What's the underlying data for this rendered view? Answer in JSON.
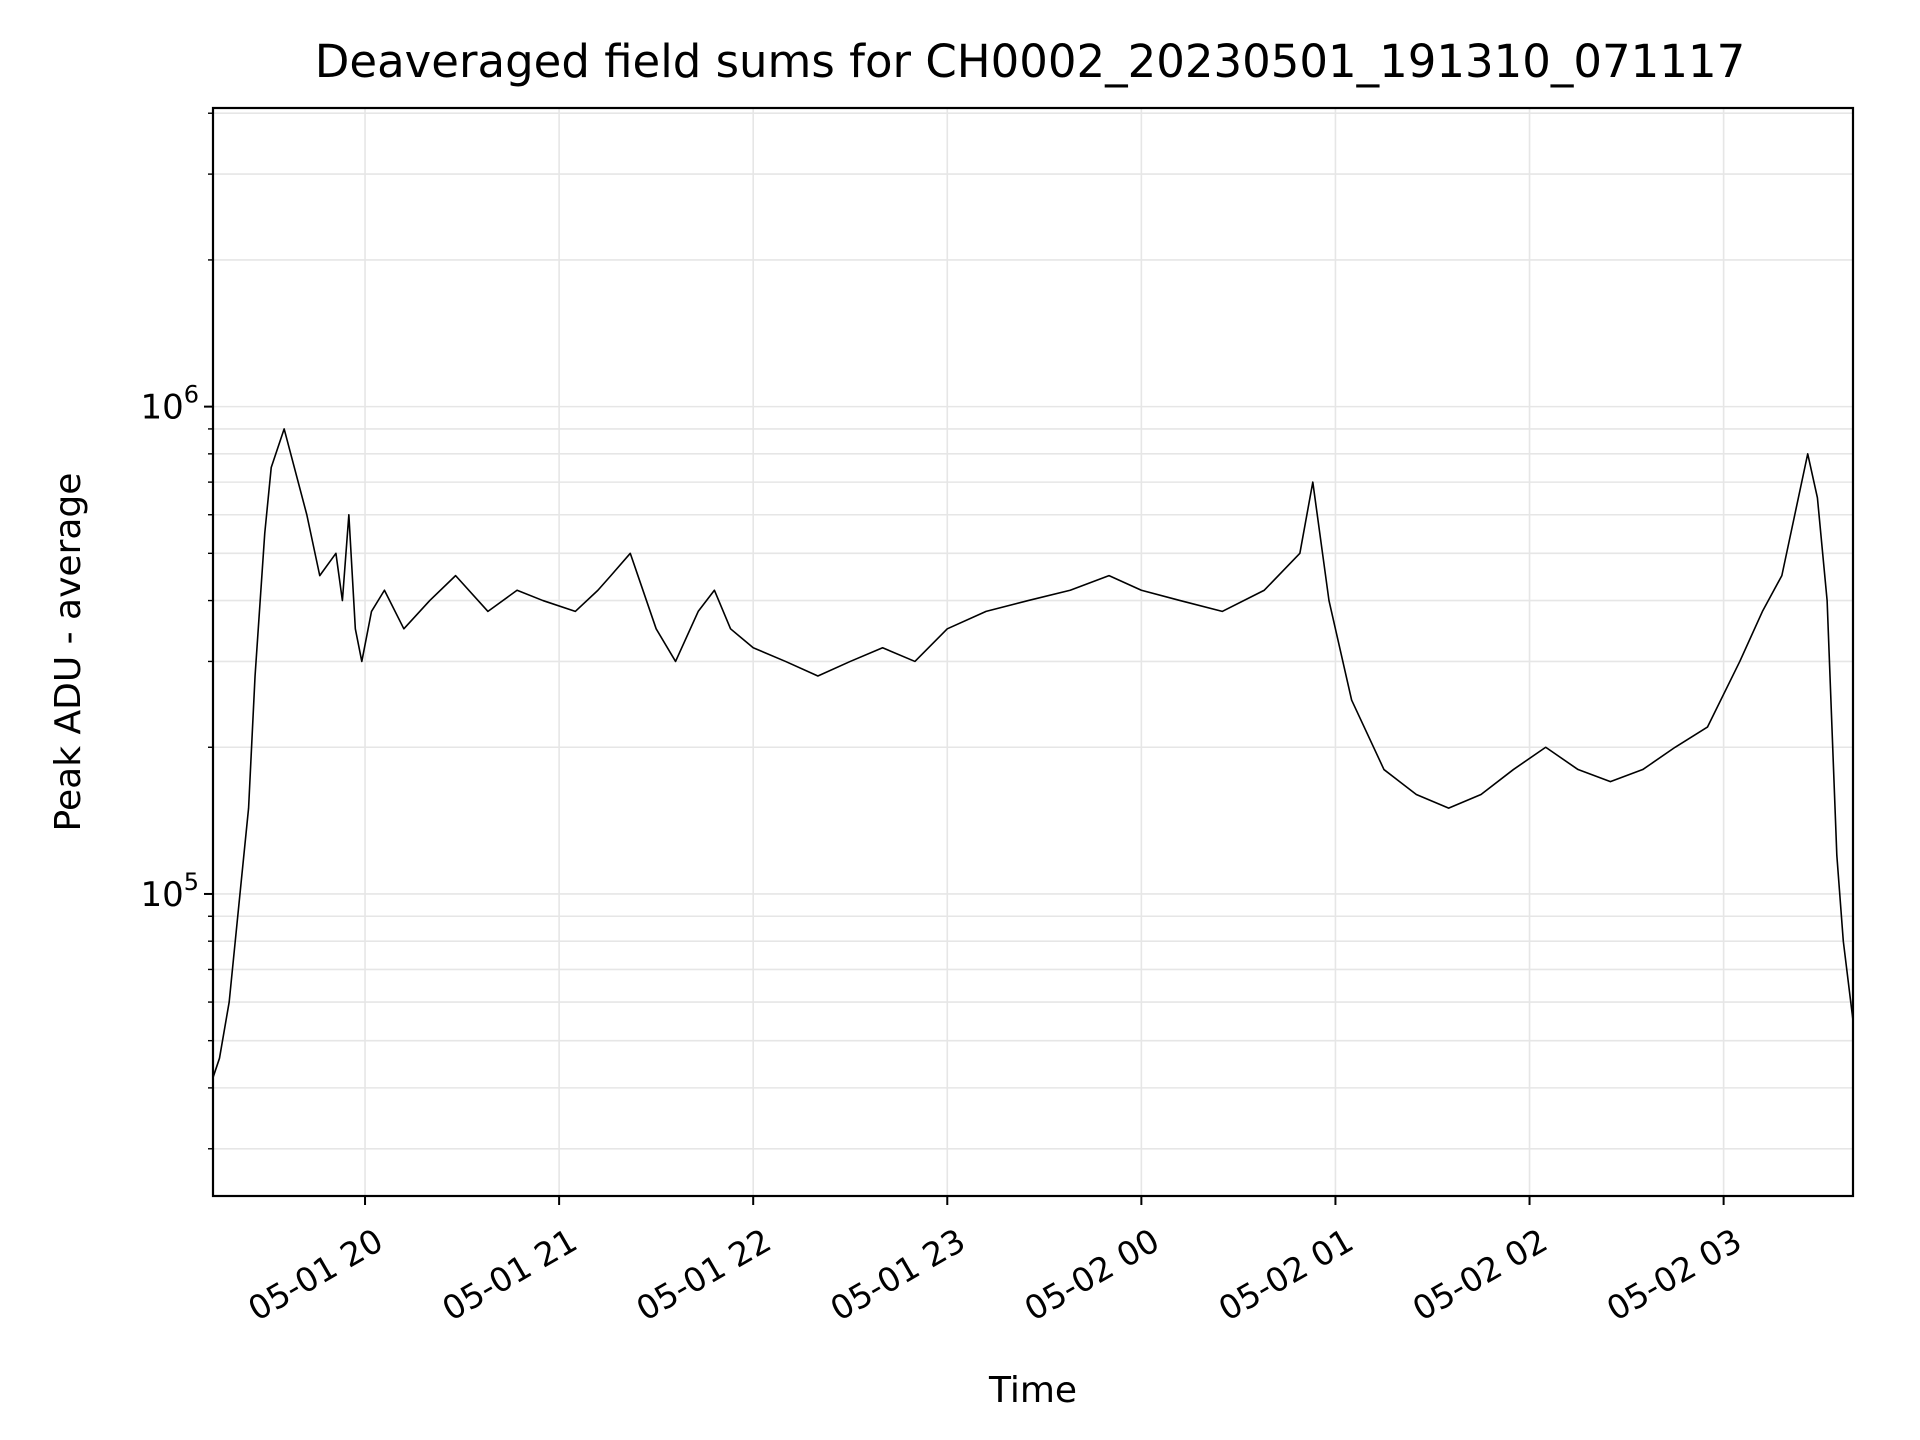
{
  "chart_data": {
    "type": "line",
    "title": "Deaveraged field sums for CH0002_20230501_191310_071117",
    "xlabel": "Time",
    "ylabel": "Peak ADU - average",
    "y_scale": "log",
    "ylim": [
      24000,
      4100000
    ],
    "xlim": [
      "2023-05-01 19:13",
      "2023-05-02 03:40"
    ],
    "grid": true,
    "line_color": "#000000",
    "grid_color": "#e6e6e6",
    "x_ticks": [
      {
        "value": "2023-05-01 20:00",
        "label": "05-01 20"
      },
      {
        "value": "2023-05-01 21:00",
        "label": "05-01 21"
      },
      {
        "value": "2023-05-01 22:00",
        "label": "05-01 22"
      },
      {
        "value": "2023-05-01 23:00",
        "label": "05-01 23"
      },
      {
        "value": "2023-05-02 00:00",
        "label": "05-02 00"
      },
      {
        "value": "2023-05-02 01:00",
        "label": "05-02 01"
      },
      {
        "value": "2023-05-02 02:00",
        "label": "05-02 02"
      },
      {
        "value": "2023-05-02 03:00",
        "label": "05-02 03"
      }
    ],
    "y_ticks": [
      {
        "value": 100000,
        "base": "10",
        "exp": "5"
      },
      {
        "value": 1000000,
        "base": "10",
        "exp": "6"
      }
    ],
    "series": [
      {
        "x": [
          "2023-05-01 19:13",
          "2023-05-01 19:15",
          "2023-05-01 19:18",
          "2023-05-01 19:21",
          "2023-05-01 19:24",
          "2023-05-01 19:26",
          "2023-05-01 19:29",
          "2023-05-01 19:31",
          "2023-05-01 19:35",
          "2023-05-01 19:42",
          "2023-05-01 19:46",
          "2023-05-01 19:51",
          "2023-05-01 19:53",
          "2023-05-01 19:55",
          "2023-05-01 19:57",
          "2023-05-01 19:59",
          "2023-05-01 20:02",
          "2023-05-01 20:06",
          "2023-05-01 20:12",
          "2023-05-01 20:20",
          "2023-05-01 20:28",
          "2023-05-01 20:38",
          "2023-05-01 20:47",
          "2023-05-01 20:55",
          "2023-05-01 21:05",
          "2023-05-01 21:12",
          "2023-05-01 21:16",
          "2023-05-01 21:22",
          "2023-05-01 21:30",
          "2023-05-01 21:36",
          "2023-05-01 21:43",
          "2023-05-01 21:48",
          "2023-05-01 21:53",
          "2023-05-01 22:00",
          "2023-05-01 22:10",
          "2023-05-01 22:20",
          "2023-05-01 22:30",
          "2023-05-01 22:40",
          "2023-05-01 22:50",
          "2023-05-01 23:00",
          "2023-05-01 23:12",
          "2023-05-01 23:25",
          "2023-05-01 23:38",
          "2023-05-01 23:50",
          "2023-05-02 00:00",
          "2023-05-02 00:12",
          "2023-05-02 00:25",
          "2023-05-02 00:38",
          "2023-05-02 00:49",
          "2023-05-02 00:53",
          "2023-05-02 00:58",
          "2023-05-02 01:05",
          "2023-05-02 01:15",
          "2023-05-02 01:25",
          "2023-05-02 01:35",
          "2023-05-02 01:45",
          "2023-05-02 01:55",
          "2023-05-02 02:05",
          "2023-05-02 02:15",
          "2023-05-02 02:25",
          "2023-05-02 02:35",
          "2023-05-02 02:45",
          "2023-05-02 02:55",
          "2023-05-02 03:05",
          "2023-05-02 03:12",
          "2023-05-02 03:18",
          "2023-05-02 03:22",
          "2023-05-02 03:26",
          "2023-05-02 03:29",
          "2023-05-02 03:32",
          "2023-05-02 03:35",
          "2023-05-02 03:37",
          "2023-05-02 03:40"
        ],
        "y": [
          42000,
          46000,
          60000,
          95000,
          150000,
          280000,
          550000,
          750000,
          900000,
          600000,
          450000,
          500000,
          400000,
          600000,
          350000,
          300000,
          380000,
          420000,
          350000,
          400000,
          450000,
          380000,
          420000,
          400000,
          380000,
          420000,
          450000,
          500000,
          350000,
          300000,
          380000,
          420000,
          350000,
          320000,
          300000,
          280000,
          300000,
          320000,
          300000,
          350000,
          380000,
          400000,
          420000,
          450000,
          420000,
          400000,
          380000,
          420000,
          500000,
          700000,
          400000,
          250000,
          180000,
          160000,
          150000,
          160000,
          180000,
          200000,
          180000,
          170000,
          180000,
          200000,
          220000,
          300000,
          380000,
          450000,
          600000,
          800000,
          650000,
          400000,
          120000,
          80000,
          55000
        ]
      }
    ]
  }
}
